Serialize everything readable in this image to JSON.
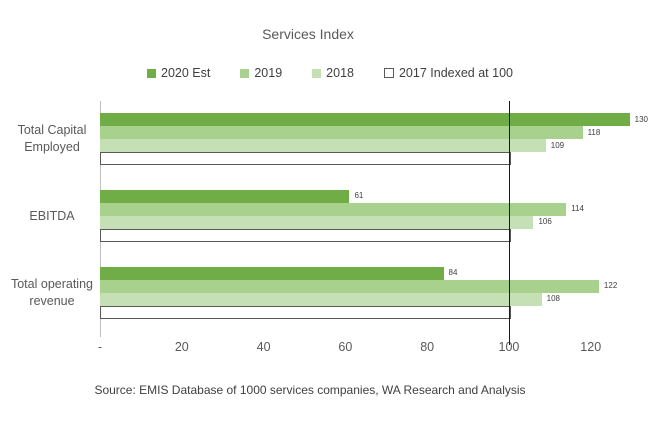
{
  "title": "Services Index",
  "source": "Source: EMIS Database of 1000 services companies, WA Research and Analysis",
  "colors": {
    "series_2020": "#70AD47",
    "series_2019": "#A9D18E",
    "series_2018": "#C5E0B4",
    "series_2017_fill": "#FFFFFF",
    "series_2017_border": "#595959",
    "reference_line": "#1A1A1A",
    "axis_line": "#BFBFBF",
    "label_text": "#595959",
    "value_text": "#404040"
  },
  "chart_data": {
    "type": "bar",
    "orientation": "horizontal",
    "title": "Services Index",
    "categories": [
      "Total Capital Employed",
      "EBITDA",
      "Total operating revenue"
    ],
    "series": [
      {
        "name": "2020 Est",
        "color": "#70AD47",
        "outlined": false,
        "values": [
          130,
          61,
          84
        ]
      },
      {
        "name": "2019",
        "color": "#A9D18E",
        "outlined": false,
        "values": [
          118,
          114,
          122
        ]
      },
      {
        "name": "2018",
        "color": "#C5E0B4",
        "outlined": false,
        "values": [
          109,
          106,
          108
        ]
      },
      {
        "name": "2017 Indexed at 100",
        "color": "#FFFFFF",
        "outlined": true,
        "values": [
          100,
          100,
          100
        ]
      }
    ],
    "x_ticks": [
      {
        "value": 0,
        "label": "-"
      },
      {
        "value": 20,
        "label": "20"
      },
      {
        "value": 40,
        "label": "40"
      },
      {
        "value": 60,
        "label": "60"
      },
      {
        "value": 80,
        "label": "80"
      },
      {
        "value": 100,
        "label": "100"
      },
      {
        "value": 120,
        "label": "120"
      }
    ],
    "xlim": [
      0,
      134
    ],
    "reference_line_x": 100,
    "legend_position": "top",
    "grid": false,
    "value_labels_on_filled_series": true
  }
}
